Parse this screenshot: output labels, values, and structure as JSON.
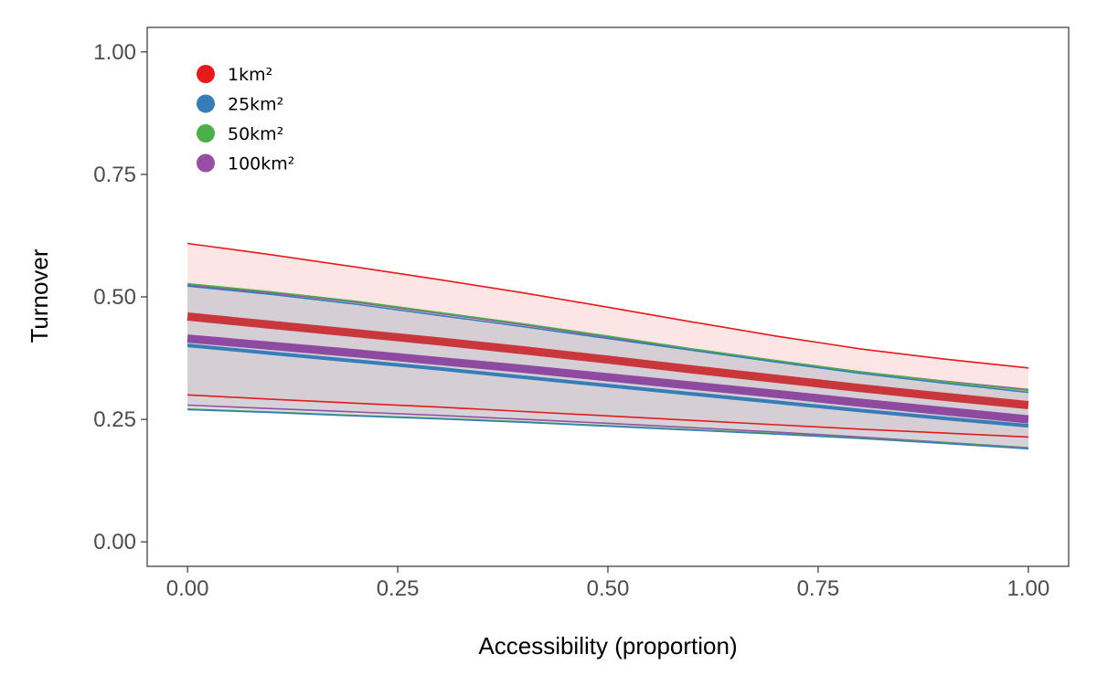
{
  "chart_data": {
    "type": "line",
    "xlabel": "Accessibility (proportion)",
    "ylabel": "Turnover",
    "xlim": [
      -0.048,
      1.048
    ],
    "ylim": [
      -0.05,
      1.05
    ],
    "x_ticks": [
      "0.00",
      "0.25",
      "0.50",
      "0.75",
      "1.00"
    ],
    "y_ticks": [
      "0.00",
      "0.25",
      "0.50",
      "0.75",
      "1.00"
    ],
    "grid": false,
    "legend_position": "top-left",
    "x": [
      0,
      0.1,
      0.2,
      0.3,
      0.4,
      0.5,
      0.6,
      0.7,
      0.8,
      0.9,
      1.0
    ],
    "series": [
      {
        "name": "1km²",
        "color": "#e41a1c",
        "fit": [
          0.46,
          0.443,
          0.426,
          0.409,
          0.391,
          0.372,
          0.352,
          0.333,
          0.314,
          0.296,
          0.279
        ],
        "upper": [
          0.609,
          0.586,
          0.561,
          0.535,
          0.508,
          0.479,
          0.449,
          0.42,
          0.394,
          0.373,
          0.355
        ],
        "lower": [
          0.3,
          0.291,
          0.283,
          0.275,
          0.266,
          0.257,
          0.248,
          0.239,
          0.23,
          0.222,
          0.214
        ]
      },
      {
        "name": "25km²",
        "color": "#377eb8",
        "fit": [
          0.401,
          0.385,
          0.369,
          0.353,
          0.336,
          0.319,
          0.302,
          0.285,
          0.268,
          0.252,
          0.237
        ],
        "upper": [
          0.522,
          0.505,
          0.485,
          0.462,
          0.439,
          0.415,
          0.391,
          0.367,
          0.344,
          0.324,
          0.305
        ],
        "lower": [
          0.27,
          0.264,
          0.257,
          0.251,
          0.244,
          0.236,
          0.228,
          0.22,
          0.211,
          0.201,
          0.19
        ]
      },
      {
        "name": "50km²",
        "color": "#4daf4a",
        "fit": [
          0.412,
          0.397,
          0.382,
          0.366,
          0.35,
          0.333,
          0.316,
          0.299,
          0.282,
          0.265,
          0.249
        ],
        "upper": [
          0.527,
          0.51,
          0.491,
          0.468,
          0.445,
          0.42,
          0.394,
          0.37,
          0.347,
          0.327,
          0.309
        ],
        "lower": [
          0.271,
          0.265,
          0.258,
          0.252,
          0.245,
          0.237,
          0.229,
          0.221,
          0.212,
          0.202,
          0.191
        ]
      },
      {
        "name": "100km²",
        "color": "#984ea3",
        "fit": [
          0.415,
          0.4,
          0.385,
          0.369,
          0.353,
          0.336,
          0.319,
          0.302,
          0.284,
          0.267,
          0.25
        ],
        "upper": [
          0.524,
          0.508,
          0.489,
          0.466,
          0.443,
          0.418,
          0.393,
          0.369,
          0.347,
          0.328,
          0.311
        ],
        "lower": [
          0.279,
          0.272,
          0.265,
          0.258,
          0.25,
          0.242,
          0.233,
          0.224,
          0.214,
          0.203,
          0.192
        ]
      }
    ]
  }
}
